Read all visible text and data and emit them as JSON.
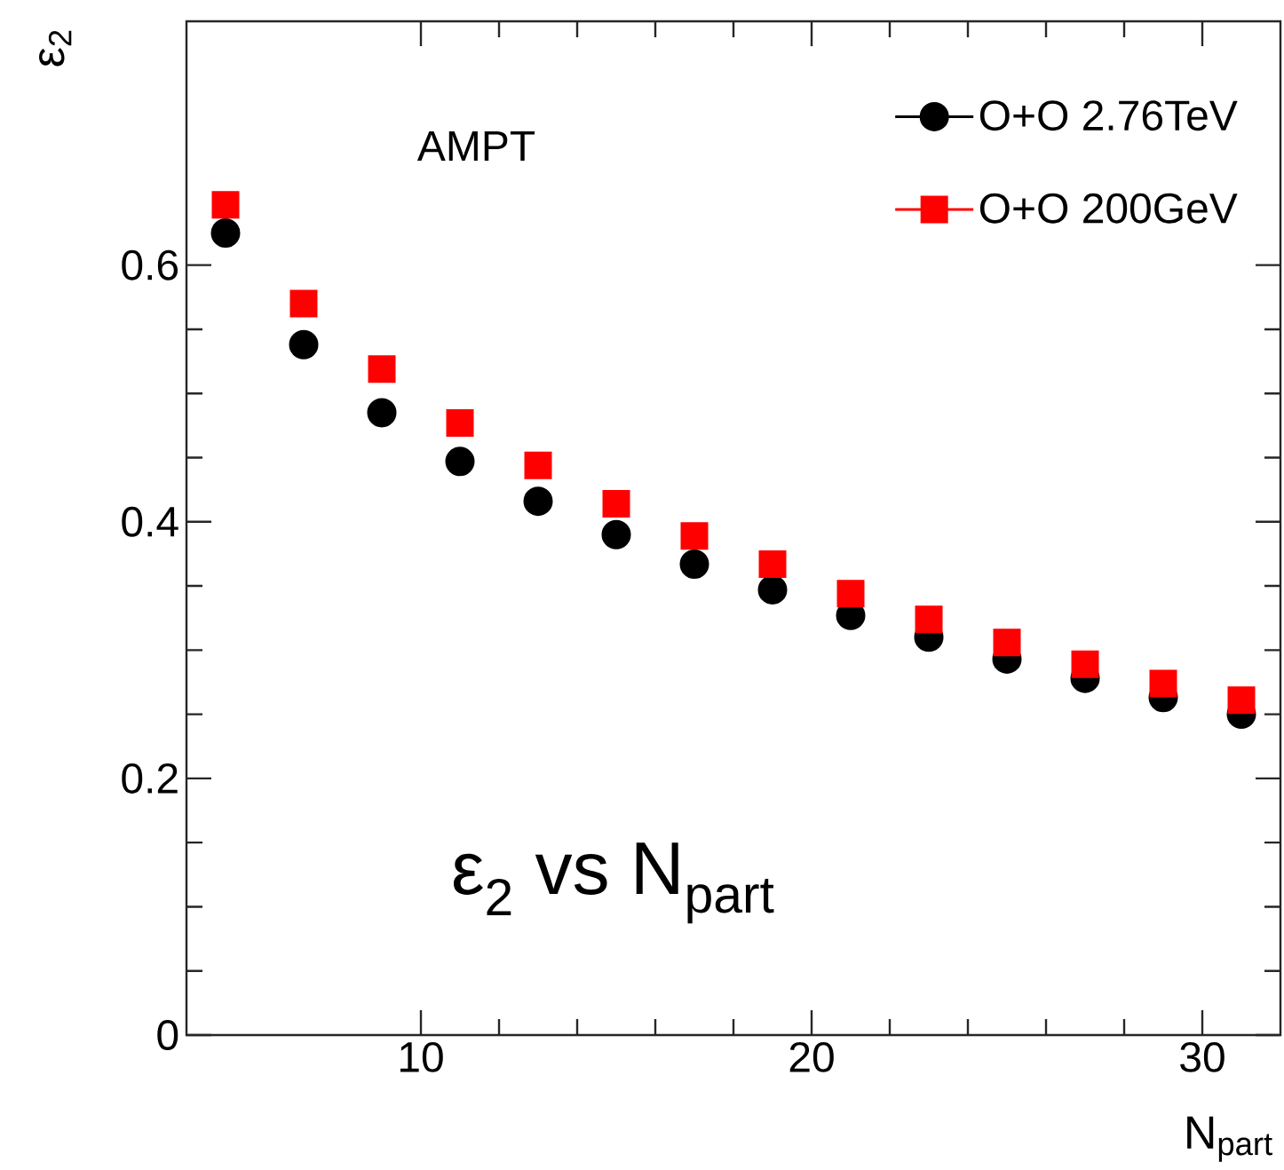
{
  "chart_data": {
    "type": "scatter",
    "xlabel": "N$_{part}$",
    "ylabel": "ε$_{2}$",
    "annotations": [
      "AMPT",
      "ε$_{2}$ vs N$_{part}$"
    ],
    "x": [
      5,
      7,
      9,
      11,
      13,
      15,
      17,
      19,
      21,
      23,
      25,
      27,
      29,
      31
    ],
    "xlim": [
      4,
      32
    ],
    "ylim": [
      0,
      0.79
    ],
    "xticks": [
      10,
      20,
      30
    ],
    "yticks": [
      0,
      0.2,
      0.4,
      0.6
    ],
    "legend": "top right",
    "series": [
      {
        "name": "O+O 2.76TeV",
        "color": "#000000",
        "marker": "circle",
        "values": [
          0.625,
          0.538,
          0.485,
          0.447,
          0.416,
          0.39,
          0.367,
          0.347,
          0.327,
          0.31,
          0.293,
          0.278,
          0.263,
          0.25
        ]
      },
      {
        "name": "O+O 200GeV",
        "color": "#ff0000",
        "marker": "square",
        "values": [
          0.647,
          0.57,
          0.519,
          0.477,
          0.444,
          0.414,
          0.389,
          0.367,
          0.344,
          0.324,
          0.306,
          0.289,
          0.274,
          0.261
        ]
      }
    ]
  }
}
